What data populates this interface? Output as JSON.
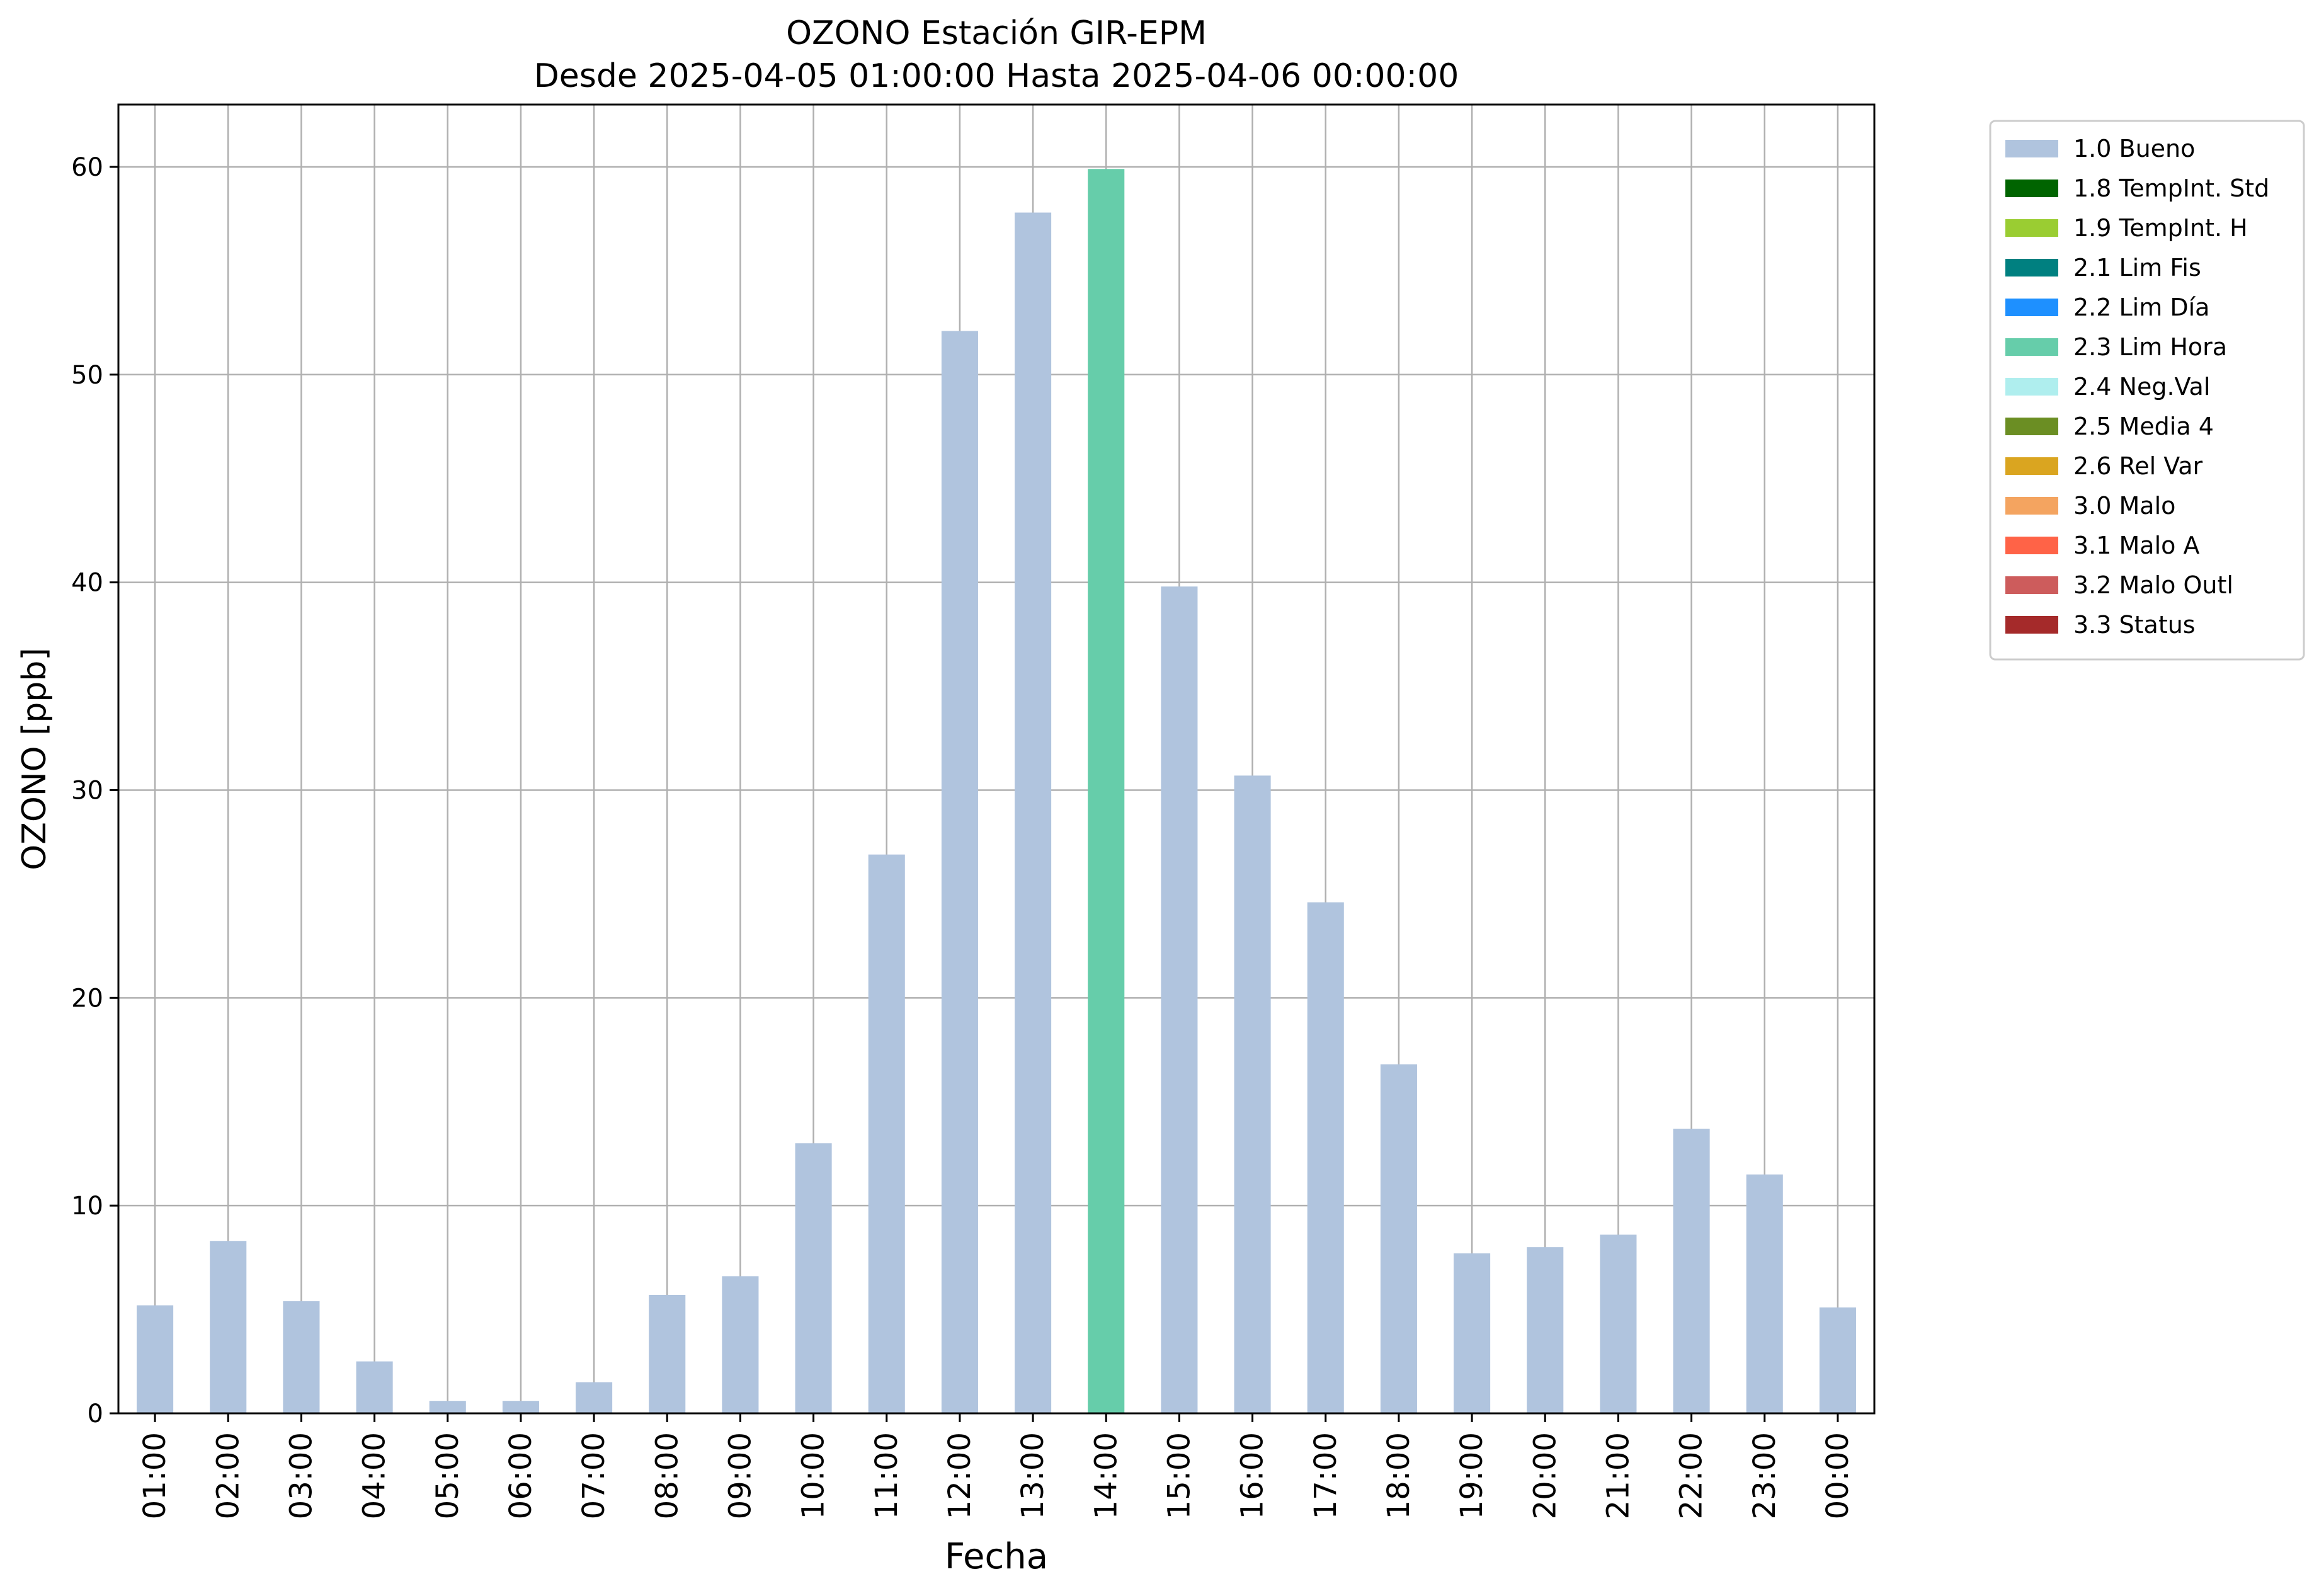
{
  "chart_data": {
    "type": "bar",
    "title": "OZONO Estación GIR-EPM",
    "subtitle": "Desde 2025-04-05 01:00:00 Hasta 2025-04-06 00:00:00",
    "xlabel": "Fecha",
    "ylabel": "OZONO [ppb]",
    "ylim": [
      0,
      63
    ],
    "yticks": [
      0,
      10,
      20,
      30,
      40,
      50,
      60
    ],
    "grid": true,
    "legend_position": "outside-top-right",
    "categories": [
      "01:00",
      "02:00",
      "03:00",
      "04:00",
      "05:00",
      "06:00",
      "07:00",
      "08:00",
      "09:00",
      "10:00",
      "11:00",
      "12:00",
      "13:00",
      "14:00",
      "15:00",
      "16:00",
      "17:00",
      "18:00",
      "19:00",
      "20:00",
      "21:00",
      "22:00",
      "23:00",
      "00:00"
    ],
    "values": [
      5.2,
      8.3,
      5.4,
      2.5,
      0.6,
      0.6,
      1.5,
      5.7,
      6.6,
      13.0,
      26.9,
      52.1,
      57.8,
      59.9,
      39.8,
      30.7,
      24.6,
      16.8,
      7.7,
      8.0,
      8.6,
      13.7,
      11.5,
      5.1
    ],
    "flags": [
      "1.0 Bueno",
      "1.0 Bueno",
      "1.0 Bueno",
      "1.0 Bueno",
      "1.0 Bueno",
      "1.0 Bueno",
      "1.0 Bueno",
      "1.0 Bueno",
      "1.0 Bueno",
      "1.0 Bueno",
      "1.0 Bueno",
      "1.0 Bueno",
      "1.0 Bueno",
      "2.3 Lim Hora",
      "1.0 Bueno",
      "1.0 Bueno",
      "1.0 Bueno",
      "1.0 Bueno",
      "1.0 Bueno",
      "1.0 Bueno",
      "1.0 Bueno",
      "1.0 Bueno",
      "1.0 Bueno",
      "1.0 Bueno"
    ],
    "legend": [
      {
        "label": "1.0 Bueno",
        "color": "#b0c4de"
      },
      {
        "label": "1.8 TempInt. Std",
        "color": "#006400"
      },
      {
        "label": "1.9 TempInt. H",
        "color": "#9acd32"
      },
      {
        "label": "2.1 Lim Fis",
        "color": "#008080"
      },
      {
        "label": "2.2 Lim Día",
        "color": "#1e90ff"
      },
      {
        "label": "2.3 Lim Hora",
        "color": "#66cdaa"
      },
      {
        "label": "2.4 Neg.Val",
        "color": "#afeeee"
      },
      {
        "label": "2.5 Media 4",
        "color": "#6b8e23"
      },
      {
        "label": "2.6 Rel Var",
        "color": "#daa520"
      },
      {
        "label": "3.0 Malo",
        "color": "#f4a460"
      },
      {
        "label": "3.1 Malo A",
        "color": "#ff6347"
      },
      {
        "label": "3.2 Malo Outl",
        "color": "#cd5c5c"
      },
      {
        "label": "3.3 Status",
        "color": "#a52a2a"
      }
    ]
  }
}
